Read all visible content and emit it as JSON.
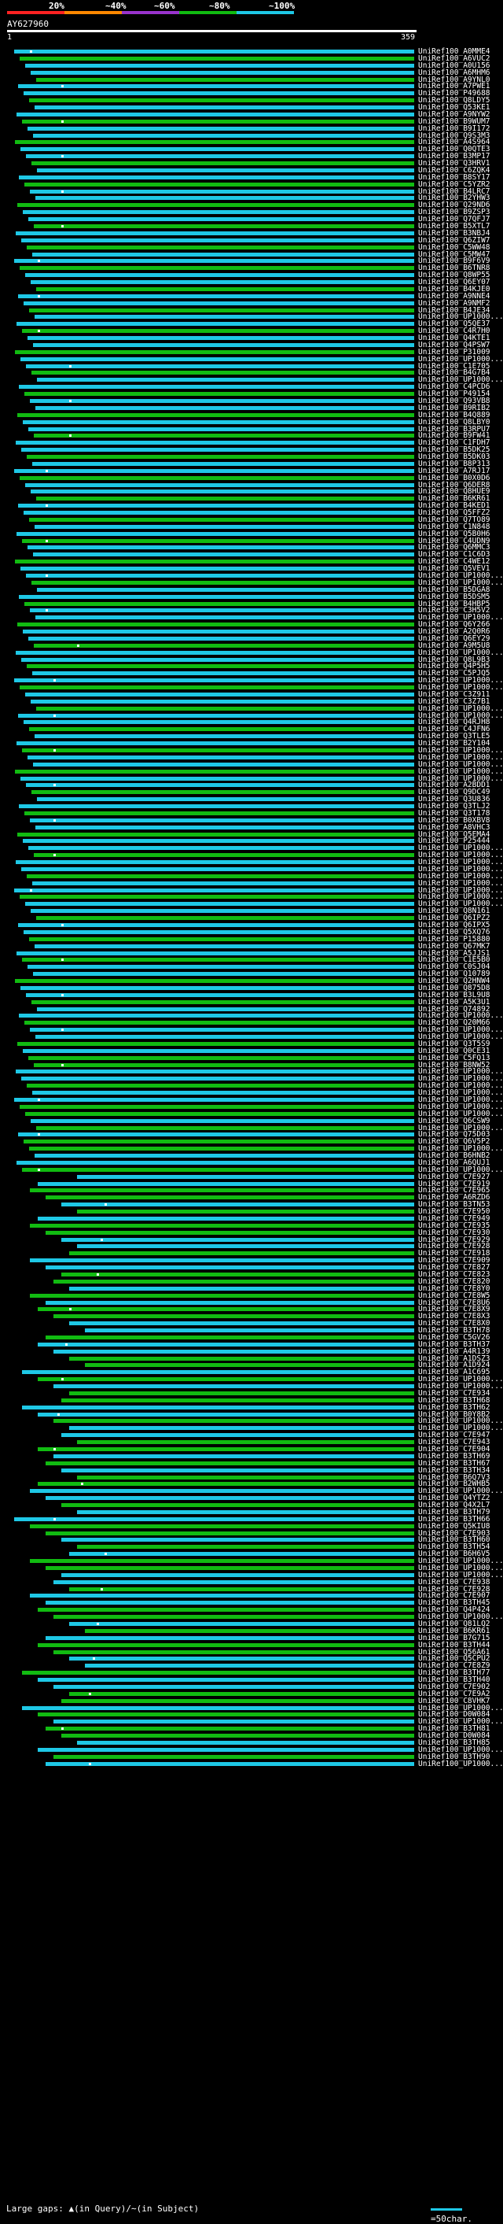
{
  "legend": {
    "ticks": [
      "20%",
      "~40%",
      "~60%",
      "~80%",
      "~100%"
    ],
    "colors": [
      "#ff2222",
      "#ff8800",
      "#9933cc",
      "#11bb11",
      "#1ec8e6"
    ]
  },
  "query": {
    "id": "AY627960",
    "start": "1",
    "end": "359"
  },
  "hit_labels": [
    "UniRef100_A0MME4",
    "UniRef100_A6VUC2",
    "UniRef100_A0U156",
    "UniRef100_A6MHM6",
    "UniRef100_A9YNL0",
    "UniRef100_A7PWE1",
    "UniRef100_P49688",
    "UniRef100_Q8LDY5",
    "UniRef100_Q53KE1",
    "UniRef100_A9NYW2",
    "UniRef100_B9WUM7",
    "UniRef100_B9I172",
    "UniRef100_Q9S3M3",
    "UniRef100_A4S964",
    "UniRef100_Q0QTE3",
    "UniRef100_B3MP17",
    "UniRef100_Q3HRV1",
    "UniRef100_C6ZQK4",
    "UniRef100_B8SY17",
    "UniRef100_C5YZR2",
    "UniRef100_B4LRC7",
    "UniRef100_B2YHW3",
    "UniRef100_Q29ND6",
    "UniRef100_B9ZSP3",
    "UniRef100_Q7QFJ7",
    "UniRef100_B5XTL7",
    "UniRef100_B3NBJ4",
    "UniRef100_Q6ZIW7",
    "UniRef100_C5WW48",
    "UniRef100_C5MW47",
    "UniRef100_B9F6V9",
    "UniRef100_B6TNR8",
    "UniRef100_Q8WP55",
    "UniRef100_Q6EY07",
    "UniRef100_B4KJE0",
    "UniRef100_A9NNE4",
    "UniRef100_A9NMF2",
    "UniRef100_B4JE34",
    "UniRef100_UP1000...",
    "UniRef100_Q5QE37",
    "UniRef100_C4R7H0",
    "UniRef100_Q4KTE1",
    "UniRef100_Q4PSW7",
    "UniRef100_P31009",
    "UniRef100_UP1000...",
    "UniRef100_C1E705",
    "UniRef100_B4G7B4",
    "UniRef100_UP1000...",
    "UniRef100_C4PCD6",
    "UniRef100_P49154",
    "UniRef100_Q93VB8",
    "UniRef100_B9RIB2",
    "UniRef100_B4Q889",
    "UniRef100_Q8LBY0",
    "UniRef100_B3RPU7",
    "UniRef100_B9FW41",
    "UniRef100_C1FDH7",
    "UniRef100_B5DK25",
    "UniRef100_B5DK03",
    "UniRef100_B8P313",
    "UniRef100_A7RJ17",
    "UniRef100_B0X0D6",
    "UniRef100_Q6DER8",
    "UniRef100_Q8HUE9",
    "UniRef100_B6KR61",
    "UniRef100_B4KED1",
    "UniRef100_Q5FFZ2",
    "UniRef100_Q7TO89",
    "UniRef100_C1N848",
    "UniRef100_Q5B0H6",
    "UniRef100_C4UDN9",
    "UniRef100_Q6MMC3",
    "UniRef100_C1C6D3",
    "UniRef100_C4WE12",
    "UniRef100_Q5VEV1",
    "UniRef100_UP1000...",
    "UniRef100_UP1000...",
    "UniRef100_B5DGA8",
    "UniRef100_B5DSM5",
    "UniRef100_B4HBP5",
    "UniRef100_C3H5V2",
    "UniRef100_UP1000...",
    "UniRef100_Q6Y266",
    "UniRef100_A2Q0R6",
    "UniRef100_Q6EY29",
    "UniRef100_A9M5U8",
    "UniRef100_UP1000...",
    "UniRef100_Q8L9B3",
    "UniRef100_Q4P5H5",
    "UniRef100_C5PJQ5",
    "UniRef100_UP1000...",
    "UniRef100_UP1000...",
    "UniRef100_C3Z911",
    "UniRef100_C3Z7B1",
    "UniRef100_UP1000...",
    "UniRef100_UP1000...",
    "UniRef100_Q4RJH8",
    "UniRef100_C4JFN6",
    "UniRef100_Q3TLE5",
    "UniRef100_B2Y104",
    "UniRef100_UP1000...",
    "UniRef100_UP1000...",
    "UniRef100_UP1000...",
    "UniRef100_UP1000...",
    "UniRef100_UP1000...",
    "UniRef100_A2BDD1",
    "UniRef100_Q9DC49",
    "UniRef100_Q3U836",
    "UniRef100_Q3TLJ2",
    "UniRef100_Q3T178",
    "UniRef100_B0XBV8",
    "UniRef100_A8VHC3",
    "UniRef100_Q5EMA4",
    "UniRef100_P25444",
    "UniRef100_UP1000...",
    "UniRef100_UP1000...",
    "UniRef100_UP1000...",
    "UniRef100_UP1000...",
    "UniRef100_UP1000...",
    "UniRef100_UP1000...",
    "UniRef100_UP1000...",
    "UniRef100_UP1000...",
    "UniRef100_UP1000...",
    "UniRef100_Q8N161",
    "UniRef100_Q6IPZ2",
    "UniRef100_Q6IPX5",
    "UniRef100_Q5XQ76",
    "UniRef100_P15880",
    "UniRef100_Q67MK7",
    "UniRef100_A5JJS1",
    "UniRef100_C1E5B0",
    "UniRef100_C0SJ04",
    "UniRef100_Q10789",
    "UniRef100_Q2HNW4",
    "UniRef100_Q875D8",
    "UniRef100_B3L9U8",
    "UniRef100_A5K3U1",
    "UniRef100_Q74892",
    "UniRef100_UP1000...",
    "UniRef100_Q20M66",
    "UniRef100_UP1000...",
    "UniRef100_UP1000...",
    "UniRef100_Q3T5S9",
    "UniRef100_Q0CE31",
    "UniRef100_C5FQ13",
    "UniRef100_B8NW52",
    "UniRef100_UP1000...",
    "UniRef100_UP1000...",
    "UniRef100_UP1000...",
    "UniRef100_UP1000...",
    "UniRef100_UP1000...",
    "UniRef100_UP1000...",
    "UniRef100_UP1000...",
    "UniRef100_Q6CSW9",
    "UniRef100_UP1000...",
    "UniRef100_Q75D03",
    "UniRef100_Q6V5P2",
    "UniRef100_UP1000...",
    "UniRef100_B6HNB2",
    "UniRef100_A6QUJ1",
    "UniRef100_UP1000...",
    "UniRef100_C7E927",
    "UniRef100_C7E919",
    "UniRef100_C7E965",
    "UniRef100_A6RZD6",
    "UniRef100_B3TN53",
    "UniRef100_C7E950",
    "UniRef100_C7E949",
    "UniRef100_C7E935",
    "UniRef100_C7E930",
    "UniRef100_C7E929",
    "UniRef100_C7E928",
    "UniRef100_C7E918",
    "UniRef100_C7E909",
    "UniRef100_C7E827",
    "UniRef100_C7E823",
    "UniRef100_C7E820",
    "UniRef100_C7E8Y0",
    "UniRef100_C7E8W5",
    "UniRef100_C7E8U6",
    "UniRef100_C7E8X9",
    "UniRef100_C7E8X3",
    "UniRef100_C7E8X0",
    "UniRef100_B3TH78",
    "UniRef100_C5GV26",
    "UniRef100_B3TH37",
    "UniRef100_A4R139",
    "UniRef100_A1DSZ3",
    "UniRef100_A1D924",
    "UniRef100_A1C695",
    "UniRef100_UP1000...",
    "UniRef100_UP1000...",
    "UniRef100_C7E934",
    "UniRef100_B3TH68",
    "UniRef100_B3TH62",
    "UniRef100_B0Y8B2",
    "UniRef100_UP1000...",
    "UniRef100_UP1000...",
    "UniRef100_C7E947",
    "UniRef100_C7E943",
    "UniRef100_C7E904",
    "UniRef100_B3TH69",
    "UniRef100_B3TH67",
    "UniRef100_B3TH34",
    "UniRef100_B6Q7V3",
    "UniRef100_B2WHB5",
    "UniRef100_UP1000...",
    "UniRef100_Q4YTZ2",
    "UniRef100_Q4X2L7",
    "UniRef100_B3TH79",
    "UniRef100_B3TH66",
    "UniRef100_Q5KIU8",
    "UniRef100_C7E903",
    "UniRef100_B3TH60",
    "UniRef100_B3TH54",
    "UniRef100_B6H6V5",
    "UniRef100_UP1000...",
    "UniRef100_UP1000...",
    "UniRef100_UP1000...",
    "UniRef100_C7E938",
    "UniRef100_C7E928",
    "UniRef100_C7E907",
    "UniRef100_B3TH45",
    "UniRef100_Q4P424",
    "UniRef100_UP1000...",
    "UniRef100_Q81LQ2",
    "UniRef100_B6KR61",
    "UniRef100_B7G715",
    "UniRef100_B3TH44",
    "UniRef100_Q56A61",
    "UniRef100_Q5CPU2",
    "UniRef100_C7E8Z9",
    "UniRef100_B3TH77",
    "UniRef100_B3TH40",
    "UniRef100_C7E902",
    "UniRef100_C7E9A2",
    "UniRef100_C8VHK7",
    "UniRef100_UP1000...",
    "UniRef100_D0W084",
    "UniRef100_UP1000...",
    "UniRef100_B3TH81",
    "UniRef100_D0W084",
    "UniRef100_B3TH85",
    "UniRef100_UP1000...",
    "UniRef100_B3TH90",
    "UniRef100_UP1000..."
  ],
  "footer": {
    "gaps_label": "Large gaps:",
    "gap_in_query": "(in Query)",
    "gap_in_subject": "(in Subject)",
    "key_label": "=50char."
  }
}
